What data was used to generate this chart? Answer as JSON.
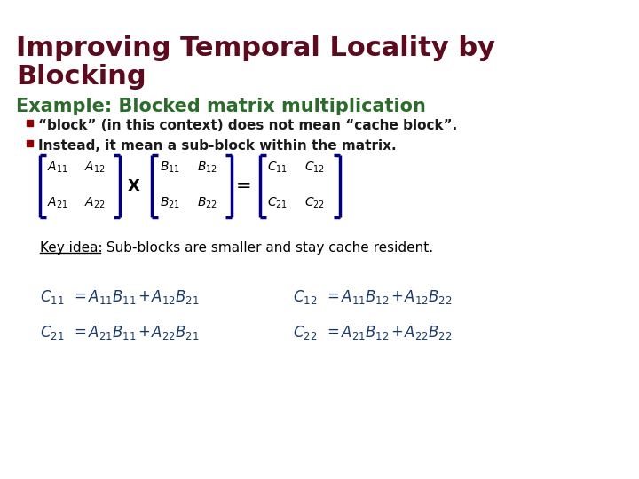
{
  "title_line1": "Improving Temporal Locality by",
  "title_line2": "Blocking",
  "title_color": "#5c0a1e",
  "bg_color": "#ffffff",
  "section_color": "#2d6a2d",
  "section_text": "Example: Blocked matrix multiplication",
  "bullet_color": "#8b0000",
  "bullet1": "“block” (in this context) does not mean “cache block”.",
  "bullet2": "Instead, it mean a sub-block within the matrix.",
  "matrix_color": "#000080",
  "key_idea_label": "Key idea:",
  "key_idea_rest": " Sub-blocks are smaller and stay cache resident.",
  "eq_color": "#1a3a6a"
}
